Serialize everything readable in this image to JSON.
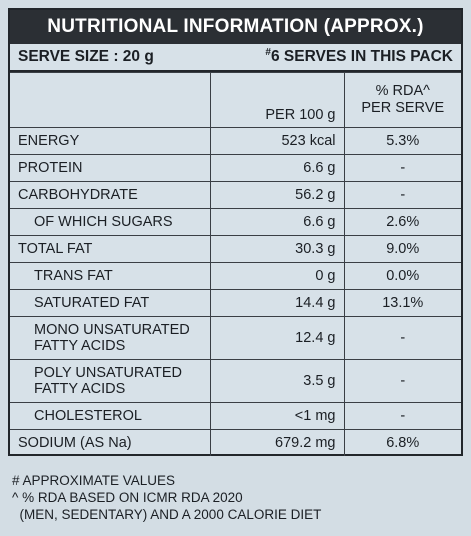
{
  "title": "NUTRITIONAL INFORMATION (APPROX.)",
  "serve_size": "SERVE SIZE : 20 g",
  "serves_mark": "#",
  "serves_text": "6 SERVES IN THIS PACK",
  "columns": {
    "per100": "PER 100 g",
    "rda_line1": "% RDA^",
    "rda_line2": "PER SERVE"
  },
  "rows": [
    {
      "name": "ENERGY",
      "per100": "523 kcal",
      "rda": "5.3%"
    },
    {
      "name": "PROTEIN",
      "per100": "6.6 g",
      "rda": "-"
    },
    {
      "name": "CARBOHYDRATE",
      "per100": "56.2 g",
      "rda": "-"
    },
    {
      "name": "OF WHICH SUGARS",
      "per100": "6.6 g",
      "rda": "2.6%"
    },
    {
      "name": "TOTAL FAT",
      "per100": "30.3 g",
      "rda": "9.0%"
    },
    {
      "name": "TRANS FAT",
      "per100": "0 g",
      "rda": "0.0%"
    },
    {
      "name": "SATURATED FAT",
      "per100": "14.4 g",
      "rda": "13.1%"
    },
    {
      "name_line1": "MONO UNSATURATED",
      "name_line2": "FATTY ACIDS",
      "per100": "12.4 g",
      "rda": "-"
    },
    {
      "name_line1": "POLY UNSATURATED",
      "name_line2": "FATTY ACIDS",
      "per100": "3.5 g",
      "rda": "-"
    },
    {
      "name": "CHOLESTEROL",
      "per100": "<1 mg",
      "rda": "-"
    },
    {
      "name": "SODIUM (AS Na)",
      "per100": "679.2 mg",
      "rda": "6.8%"
    }
  ],
  "footnotes": [
    "# APPROXIMATE VALUES",
    "^ % RDA BASED ON ICMR RDA 2020",
    "  (MEN, SEDENTARY) AND A 2000 CALORIE DIET"
  ]
}
